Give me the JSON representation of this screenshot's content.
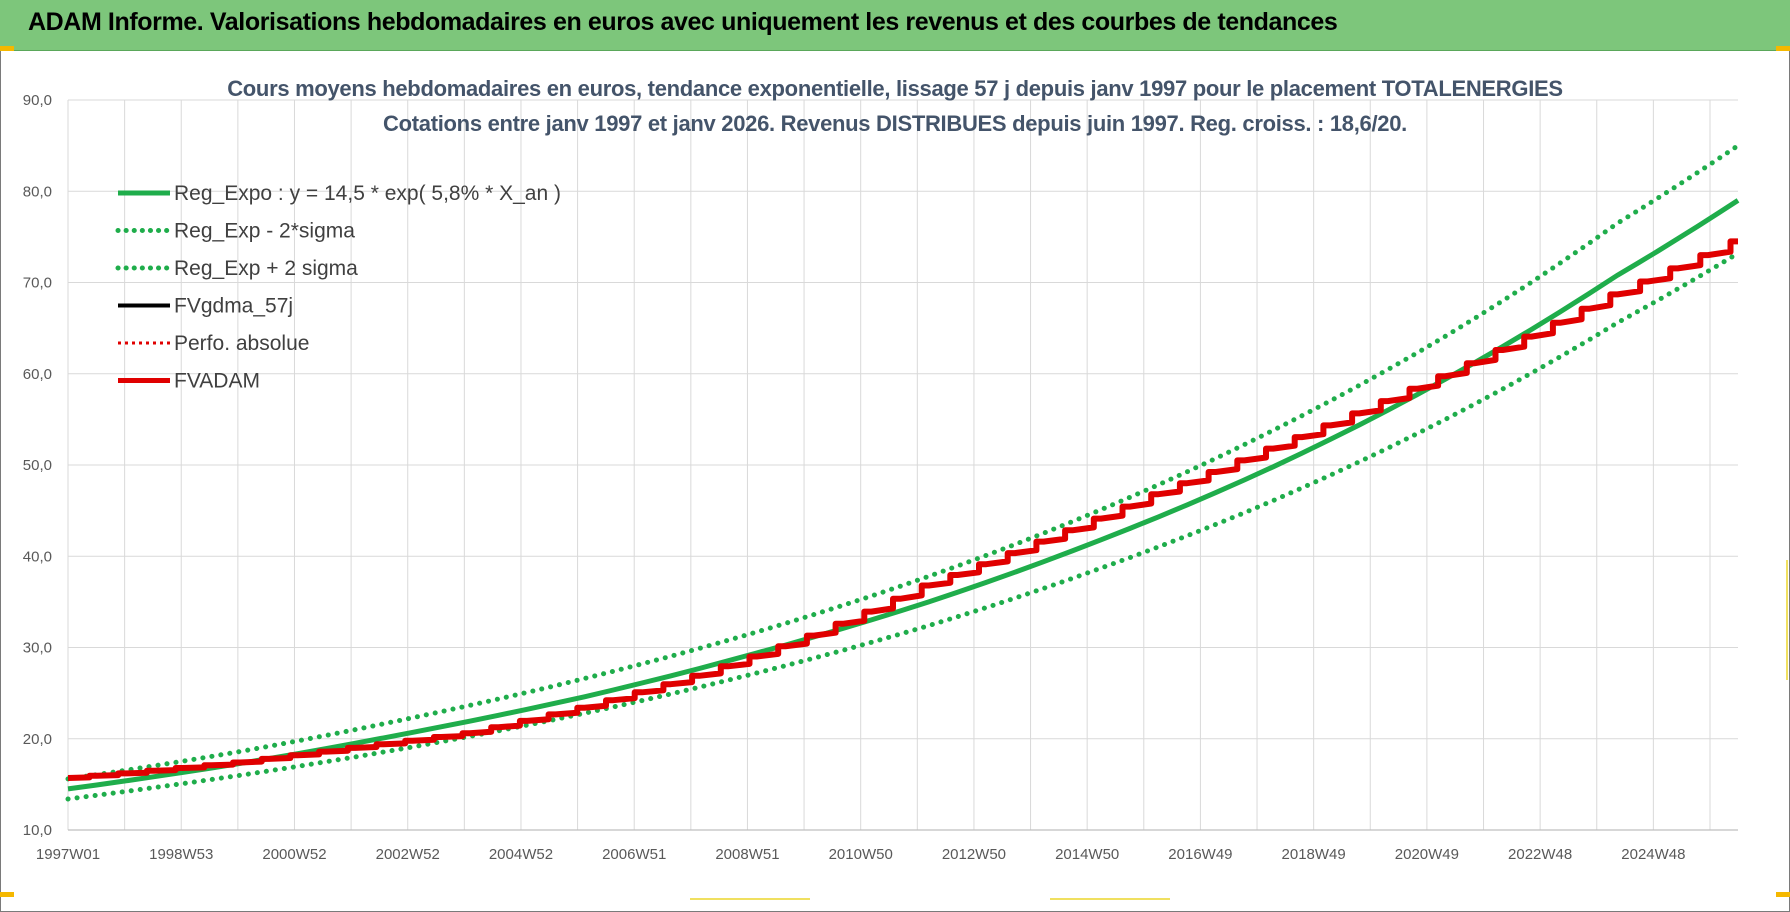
{
  "header": {
    "title": "ADAM Informe. Valorisations hebdomadaires en euros avec uniquement les revenus et des courbes de tendances"
  },
  "colors": {
    "header_bg": "#7dc67b",
    "reg_expo": "#1fad4b",
    "reg_sigma": "#1fad4b",
    "fvgdma": "#000000",
    "perfo": "#e00000",
    "fvadam": "#e00000",
    "title_text": "#44546a"
  },
  "chart_data": {
    "type": "line",
    "title": "Cours moyens hebdomadaires en euros, tendance exponentielle, lissage 57 j depuis janv 1997 pour le placement TOTALENERGIES",
    "subtitle": "Cotations entre janv 1997 et janv 2026. Revenus DISTRIBUES depuis juin 1997. Reg. croiss. : 18,6/20.",
    "xlabel": "",
    "ylabel": "",
    "ylim": [
      10,
      90
    ],
    "y_ticks": [
      "10,0",
      "20,0",
      "30,0",
      "40,0",
      "50,0",
      "60,0",
      "70,0",
      "80,0",
      "90,0"
    ],
    "x_range_years": [
      1997.0,
      2026.1
    ],
    "x_tick_labels": [
      "1997W01",
      "1998W53",
      "2000W52",
      "2002W52",
      "2004W52",
      "2006W51",
      "2008W51",
      "2010W50",
      "2012W50",
      "2014W50",
      "2016W49",
      "2018W49",
      "2020W49",
      "2022W48",
      "2024W48"
    ],
    "grid": true,
    "legend_placement": "top-left",
    "legend": [
      {
        "key": "reg_expo",
        "label": "Reg_Expo : y = 14,5 * exp( 5,8% *  X_an )",
        "style": "solid-thick",
        "color": "#1fad4b"
      },
      {
        "key": "reg_minus",
        "label": "Reg_Exp - 2*sigma",
        "style": "dotted",
        "color": "#1fad4b"
      },
      {
        "key": "reg_plus",
        "label": "Reg_Exp + 2 sigma",
        "style": "dotted",
        "color": "#1fad4b"
      },
      {
        "key": "fvgdma",
        "label": "FVgdma_57j",
        "style": "solid",
        "color": "#000000"
      },
      {
        "key": "perfo",
        "label": "Perfo. absolue",
        "style": "dotted",
        "color": "#e00000"
      },
      {
        "key": "fvadam",
        "label": "FVADAM",
        "style": "solid-thick",
        "color": "#e00000"
      }
    ],
    "series": [
      {
        "key": "reg_expo",
        "name": "Reg_Expo : y = 14,5 * exp( 5,8% *  X_an )",
        "x": [
          1997,
          2000,
          2003,
          2006,
          2009,
          2012,
          2015,
          2018,
          2021,
          2024,
          2026.1
        ],
        "y": [
          14.5,
          17.3,
          20.7,
          24.6,
          29.4,
          35.0,
          41.8,
          49.8,
          59.4,
          70.8,
          79.0
        ]
      },
      {
        "key": "reg_minus",
        "name": "Reg_Exp - 2*sigma",
        "x": [
          1997,
          2000,
          2003,
          2006,
          2009,
          2012,
          2015,
          2018,
          2021,
          2024,
          2026.1
        ],
        "y": [
          13.4,
          16.0,
          19.1,
          22.8,
          27.2,
          32.4,
          38.7,
          46.1,
          55.0,
          65.6,
          73.2
        ]
      },
      {
        "key": "reg_plus",
        "name": "Reg_Exp + 2 sigma",
        "x": [
          1997,
          2000,
          2003,
          2006,
          2009,
          2012,
          2015,
          2018,
          2021,
          2024,
          2026.1
        ],
        "y": [
          15.6,
          18.6,
          22.3,
          26.6,
          31.7,
          37.8,
          45.1,
          53.8,
          64.1,
          76.5,
          85.0
        ]
      },
      {
        "key": "fvadam",
        "name": "FVADAM",
        "x": [
          1997,
          1998,
          2000,
          2002,
          2004,
          2006,
          2008,
          2010,
          2012,
          2014,
          2016,
          2018,
          2020,
          2022,
          2024,
          2026.1
        ],
        "y": [
          15.7,
          16.2,
          17.4,
          19.0,
          20.6,
          23.4,
          26.9,
          31.3,
          36.8,
          41.6,
          46.8,
          51.8,
          57.0,
          62.6,
          68.7,
          74.5
        ]
      },
      {
        "key": "fvgdma",
        "name": "FVgdma_57j",
        "x": [
          1997,
          1998,
          2000,
          2002,
          2004,
          2006,
          2008,
          2010,
          2012,
          2014,
          2016,
          2018,
          2020,
          2022,
          2024,
          2026.1
        ],
        "y": [
          15.7,
          16.2,
          17.4,
          19.0,
          20.6,
          23.4,
          26.9,
          31.3,
          36.8,
          41.6,
          46.8,
          51.8,
          57.0,
          62.6,
          68.7,
          74.5
        ]
      }
    ]
  }
}
